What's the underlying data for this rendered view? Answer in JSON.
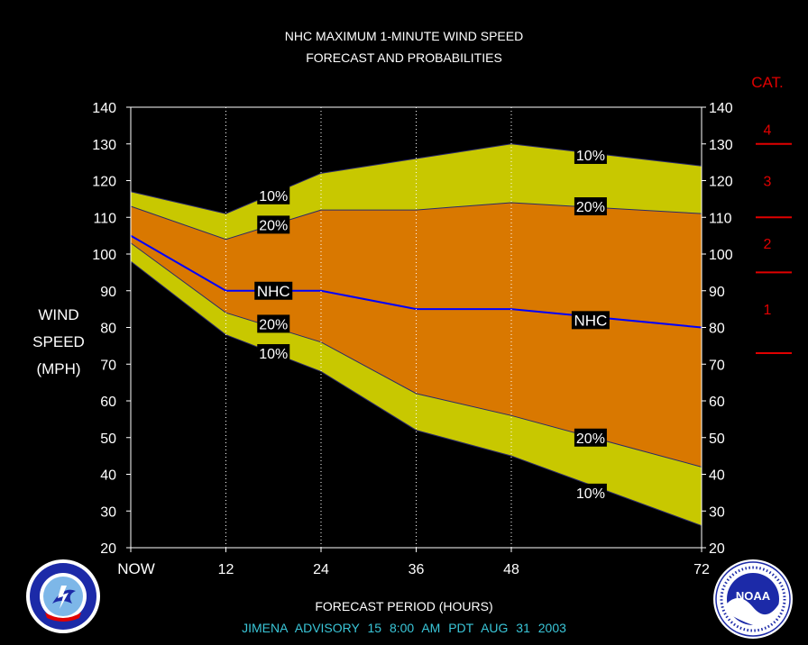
{
  "header": {
    "title": "NHC MAXIMUM 1-MINUTE WIND SPEED",
    "subtitle": "FORECAST AND PROBABILITIES"
  },
  "y_axis_label": [
    "WIND",
    "SPEED",
    "(MPH)"
  ],
  "x_axis_label": "FORECAST PERIOD (HOURS)",
  "footer": "JIMENA ADVISORY 15 8:00 AM PDT AUG 31 2003",
  "category_scale": {
    "title": "CAT.",
    "labels": [
      "4",
      "3",
      "2",
      "1"
    ],
    "boundaries": [
      130,
      110,
      95,
      73
    ],
    "label_values": [
      134,
      120,
      103,
      85
    ],
    "color": "#e00000"
  },
  "colors": {
    "outer_band": "#c8c800",
    "inner_band": "#d97800",
    "nhc_line": "#0000ff",
    "background": "#000000",
    "label_box": "#000000",
    "footer_text": "#3ac6d8"
  },
  "logos": {
    "left": "nws-logo",
    "right": "noaa-logo"
  },
  "chart_data": {
    "type": "area",
    "x": [
      0,
      12,
      24,
      36,
      48,
      72
    ],
    "x_tick_labels": [
      "NOW",
      "12",
      "24",
      "36",
      "48",
      "72"
    ],
    "xlim": [
      0,
      72
    ],
    "ylim": [
      20,
      140
    ],
    "y_ticks": [
      20,
      30,
      40,
      50,
      60,
      70,
      80,
      90,
      100,
      110,
      120,
      130,
      140
    ],
    "right_axis": true,
    "grid": "vertical dotted",
    "series": [
      {
        "name": "10%",
        "role": "upper",
        "values": [
          117,
          111,
          122,
          126,
          130,
          124
        ]
      },
      {
        "name": "20%",
        "role": "upper",
        "values": [
          113,
          104,
          112,
          112,
          114,
          111
        ]
      },
      {
        "name": "NHC",
        "role": "forecast",
        "values": [
          105,
          90,
          90,
          85,
          85,
          80
        ]
      },
      {
        "name": "20%",
        "role": "lower",
        "values": [
          103,
          84,
          76,
          62,
          56,
          42
        ]
      },
      {
        "name": "10%",
        "role": "lower",
        "values": [
          98,
          78,
          68,
          52,
          45,
          26
        ]
      }
    ],
    "labels": [
      {
        "text": "10%",
        "x": 18,
        "y": 116
      },
      {
        "text": "20%",
        "x": 18,
        "y": 108
      },
      {
        "text": "NHC",
        "x": 18,
        "y": 90
      },
      {
        "text": "20%",
        "x": 18,
        "y": 81
      },
      {
        "text": "10%",
        "x": 18,
        "y": 73
      },
      {
        "text": "10%",
        "x": 58,
        "y": 127
      },
      {
        "text": "20%",
        "x": 58,
        "y": 113
      },
      {
        "text": "NHC",
        "x": 58,
        "y": 82
      },
      {
        "text": "20%",
        "x": 58,
        "y": 50
      },
      {
        "text": "10%",
        "x": 58,
        "y": 35
      }
    ]
  }
}
